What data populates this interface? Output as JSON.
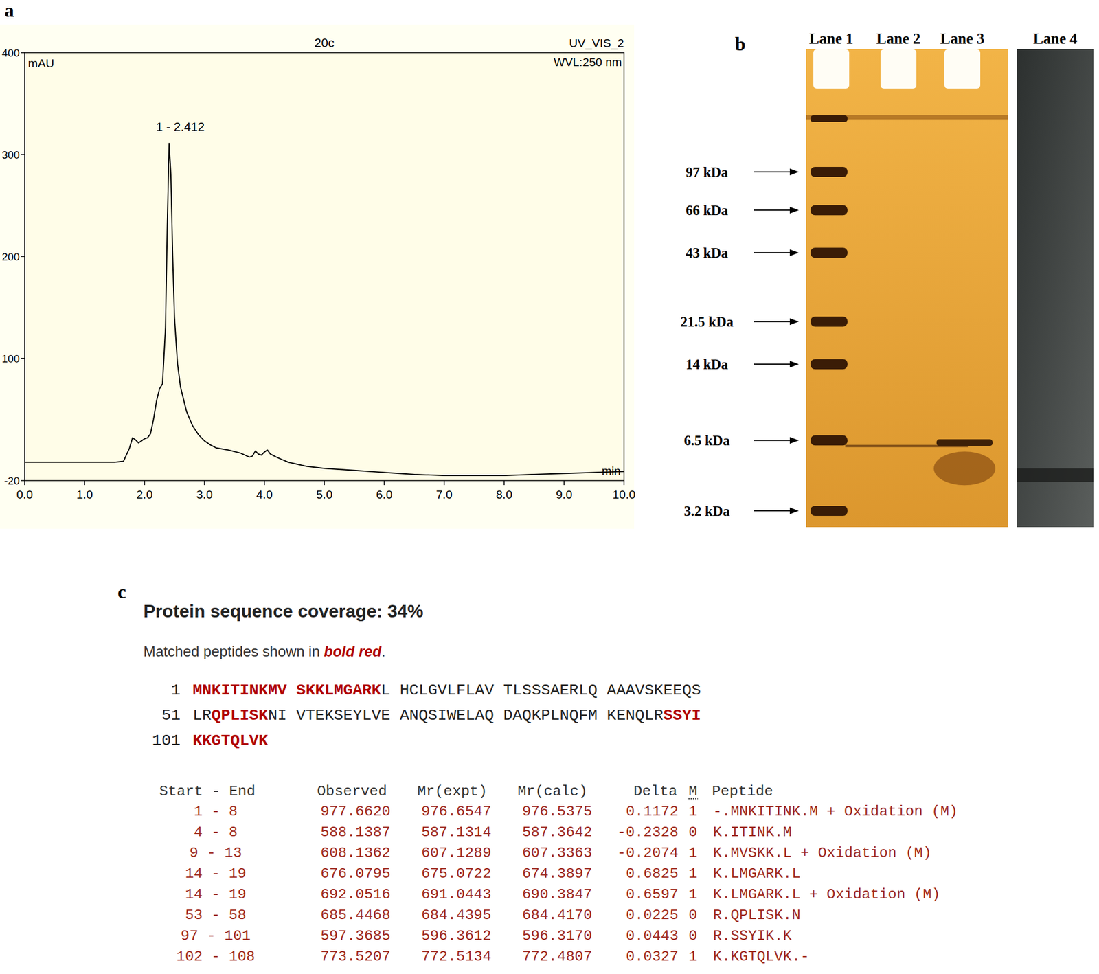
{
  "figure": {
    "panel_labels": [
      "a",
      "b",
      "c"
    ]
  },
  "chart_data": {
    "type": "line",
    "title": "20c",
    "channel": "UV_VIS_2",
    "wavelength": "WVL:250 nm",
    "peak_label": "1 - 2.412",
    "x_label": "min",
    "y_label": "mAU",
    "color": "#000000",
    "x": [
      0,
      0.5,
      1.0,
      1.5,
      1.65,
      1.75,
      1.8,
      1.85,
      1.9,
      1.95,
      2.0,
      2.05,
      2.1,
      2.15,
      2.2,
      2.25,
      2.3,
      2.35,
      2.38,
      2.41,
      2.44,
      2.47,
      2.5,
      2.55,
      2.6,
      2.7,
      2.8,
      2.9,
      3.0,
      3.1,
      3.2,
      3.4,
      3.6,
      3.75,
      3.8,
      3.85,
      3.9,
      3.95,
      4.0,
      4.05,
      4.1,
      4.2,
      4.4,
      4.7,
      5.0,
      5.5,
      6.0,
      6.5,
      7.0,
      7.5,
      8.0,
      8.5,
      9.0,
      9.5,
      10.0
    ],
    "values": [
      -2,
      -2,
      -2,
      -2,
      -1,
      12,
      22,
      20,
      17,
      19,
      21,
      22,
      26,
      40,
      58,
      70,
      75,
      130,
      230,
      311,
      280,
      200,
      140,
      95,
      72,
      48,
      34,
      25,
      19,
      15,
      12,
      10,
      7,
      3,
      4,
      9,
      6,
      5,
      8,
      10,
      6,
      3,
      -2,
      -6,
      -8,
      -10,
      -12,
      -14,
      -15,
      -15,
      -15,
      -14,
      -13,
      -12,
      -11
    ],
    "xlim": [
      0,
      10
    ],
    "ylim": [
      -20,
      400
    ],
    "xticks": [
      {
        "value": 0,
        "label": "0.0"
      },
      {
        "value": 1,
        "label": "1.0"
      },
      {
        "value": 2,
        "label": "2.0"
      },
      {
        "value": 3,
        "label": "3.0"
      },
      {
        "value": 4,
        "label": "4.0"
      },
      {
        "value": 5,
        "label": "5.0"
      },
      {
        "value": 6,
        "label": "6.0"
      },
      {
        "value": 7,
        "label": "7.0"
      },
      {
        "value": 8,
        "label": "8.0"
      },
      {
        "value": 9,
        "label": "9.0"
      },
      {
        "value": 10,
        "label": "10.0"
      }
    ],
    "yticks": [
      -20,
      100,
      200,
      300,
      400
    ]
  },
  "gel": {
    "lanes": [
      "Lane 1",
      "Lane 2",
      "Lane 3",
      "Lane 4"
    ],
    "markers": [
      {
        "value": 97,
        "label": "97 kDa"
      },
      {
        "value": 66,
        "label": "66 kDa"
      },
      {
        "value": 43,
        "label": "43 kDa"
      },
      {
        "value": 21.5,
        "label": "21.5 kDa"
      },
      {
        "value": 14,
        "label": "14 kDa"
      },
      {
        "value": 6.5,
        "label": "6.5 kDa"
      },
      {
        "value": 3.2,
        "label": "3.2 kDa"
      }
    ]
  },
  "mascot": {
    "title": "Protein sequence coverage: 34%",
    "note_prefix": "Matched peptides shown in ",
    "note_emphasis": "bold red",
    "note_suffix": ".",
    "sequence_lines": [
      {
        "start": 1,
        "text": "MNKITINKMV SKKLMGARKL HCLGVLFLAV TLSSSAERLQ AAAVSKEEQS"
      },
      {
        "start": 51,
        "text": "LRQPLISKNI VTEKSEYLVE ANQSIWELAQ DAQKPLNQFM KENQLRSSYI"
      },
      {
        "start": 101,
        "text": "KKGTQLVK"
      }
    ],
    "columns": [
      "Start - End",
      "Observed",
      "Mr(expt)",
      "Mr(calc)",
      "Delta",
      "M",
      "Peptide"
    ],
    "range_separator": " - ",
    "rows": [
      {
        "start": 1,
        "end": 8,
        "observed": "977.6620",
        "mr_expt": "976.6547",
        "mr_calc": "976.5375",
        "delta": "0.1172",
        "m": "1",
        "peptide": "-.MNKITINK.M + Oxidation (M)"
      },
      {
        "start": 4,
        "end": 8,
        "observed": "588.1387",
        "mr_expt": "587.1314",
        "mr_calc": "587.3642",
        "delta": "-0.2328",
        "m": "0",
        "peptide": "K.ITINK.M"
      },
      {
        "start": 9,
        "end": 13,
        "observed": "608.1362",
        "mr_expt": "607.1289",
        "mr_calc": "607.3363",
        "delta": "-0.2074",
        "m": "1",
        "peptide": "K.MVSKK.L + Oxidation (M)"
      },
      {
        "start": 14,
        "end": 19,
        "observed": "676.0795",
        "mr_expt": "675.0722",
        "mr_calc": "674.3897",
        "delta": "0.6825",
        "m": "1",
        "peptide": "K.LMGARK.L"
      },
      {
        "start": 14,
        "end": 19,
        "observed": "692.0516",
        "mr_expt": "691.0443",
        "mr_calc": "690.3847",
        "delta": "0.6597",
        "m": "1",
        "peptide": "K.LMGARK.L + Oxidation (M)"
      },
      {
        "start": 53,
        "end": 58,
        "observed": "685.4468",
        "mr_expt": "684.4395",
        "mr_calc": "684.4170",
        "delta": "0.0225",
        "m": "0",
        "peptide": "R.QPLISK.N"
      },
      {
        "start": 97,
        "end": 101,
        "observed": "597.3685",
        "mr_expt": "596.3612",
        "mr_calc": "596.3170",
        "delta": "0.0443",
        "m": "0",
        "peptide": "R.SSYIK.K"
      },
      {
        "start": 102,
        "end": 108,
        "observed": "773.5207",
        "mr_expt": "772.5134",
        "mr_calc": "772.4807",
        "delta": "0.0327",
        "m": "1",
        "peptide": "K.KGTQLVK.-"
      }
    ]
  }
}
